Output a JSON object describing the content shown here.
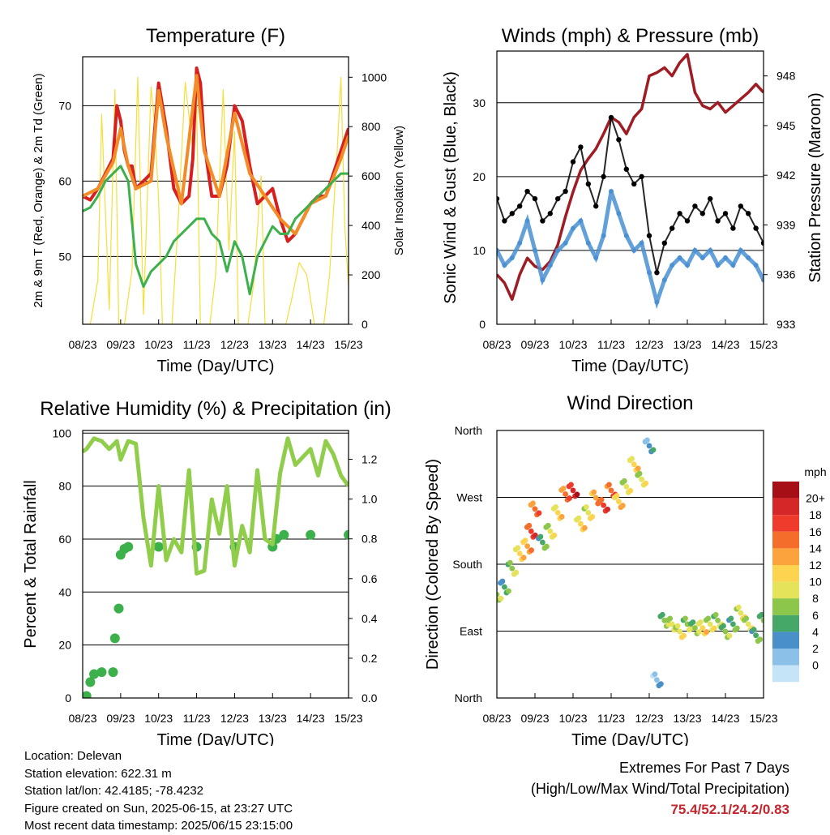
{
  "chart_data": [
    {
      "type": "line",
      "title": "Temperature (F)",
      "xlabel": "Time (Day/UTC)",
      "ylabel": "2m & 9m T (Red, Orange) & 2m Td (Green)",
      "y2label": "Solar Insolation (Yellow)",
      "x_ticks": [
        "08/23",
        "09/23",
        "10/23",
        "11/23",
        "12/23",
        "13/23",
        "14/23",
        "15/23"
      ],
      "y_ticks": [
        50,
        60,
        70
      ],
      "y2_ticks": [
        0,
        200,
        400,
        600,
        800,
        1000
      ],
      "ylim": [
        41,
        76.5
      ],
      "y2lim": [
        0,
        1083
      ],
      "grid": "horizontal",
      "series": [
        {
          "name": "2m T",
          "color": "#d62020",
          "x": [
            0,
            0.2,
            0.4,
            0.6,
            0.8,
            0.9,
            1.0,
            1.1,
            1.2,
            1.3,
            1.4,
            1.6,
            1.8,
            2.0,
            2.2,
            2.4,
            2.6,
            2.8,
            2.9,
            3.0,
            3.1,
            3.2,
            3.4,
            3.6,
            3.8,
            4.0,
            4.2,
            4.4,
            4.6,
            4.8,
            5.0,
            5.2,
            5.4,
            5.6,
            5.8,
            6.0,
            6.2,
            6.4,
            6.6,
            6.8,
            7.0
          ],
          "values": [
            58,
            57.5,
            59,
            61,
            63,
            70,
            68,
            64,
            62,
            62,
            59,
            60,
            61,
            73,
            67,
            59,
            57,
            58,
            63,
            75,
            73,
            65,
            58,
            58,
            62,
            70,
            68,
            62,
            57,
            58,
            59,
            55,
            52,
            53,
            55,
            57,
            58,
            58,
            61,
            64,
            67
          ]
        },
        {
          "name": "9m T",
          "color": "#f28c28",
          "x": [
            0,
            0.4,
            0.8,
            1.0,
            1.2,
            1.4,
            1.8,
            2.0,
            2.2,
            2.6,
            3.0,
            3.2,
            3.6,
            4.0,
            4.4,
            4.8,
            5.2,
            5.6,
            6.0,
            6.4,
            6.8,
            7.0
          ],
          "values": [
            58,
            59,
            62.5,
            67,
            62,
            59,
            60,
            72,
            66,
            57,
            74,
            64,
            58,
            69,
            61,
            58,
            55,
            53,
            57,
            58,
            63,
            66
          ]
        },
        {
          "name": "2m Td",
          "color": "#3cb04a",
          "x": [
            0,
            0.2,
            0.4,
            0.6,
            0.8,
            1.0,
            1.2,
            1.4,
            1.6,
            1.8,
            2.0,
            2.2,
            2.4,
            2.6,
            2.8,
            3.0,
            3.2,
            3.4,
            3.6,
            3.8,
            4.0,
            4.2,
            4.4,
            4.6,
            4.8,
            5.0,
            5.2,
            5.4,
            5.6,
            5.8,
            6.0,
            6.2,
            6.4,
            6.6,
            6.8,
            7.0
          ],
          "values": [
            56,
            56.5,
            58,
            60,
            61,
            62,
            60,
            49,
            46,
            48,
            49,
            50,
            52,
            53,
            54,
            55,
            55,
            53,
            52,
            48,
            52,
            50,
            45,
            50,
            52,
            54,
            53,
            53,
            55,
            56,
            57,
            58,
            59,
            60,
            61,
            61
          ]
        },
        {
          "name": "Solar Insolation",
          "color": "#f6de3b",
          "axis": "y2",
          "x": [
            0,
            0.2,
            0.4,
            0.5,
            0.7,
            0.85,
            0.95,
            1.1,
            1.3,
            1.45,
            1.6,
            1.8,
            1.9,
            2.0,
            2.1,
            2.35,
            2.5,
            2.7,
            2.9,
            3.0,
            3.1,
            3.35,
            3.5,
            3.7,
            3.85,
            4.0,
            4.1,
            4.35,
            4.5,
            4.7,
            4.8,
            4.9,
            5.1,
            5.35,
            5.5,
            5.7,
            5.9,
            6.1,
            6.35,
            6.5,
            6.7,
            6.8,
            6.9,
            7.0
          ],
          "values": [
            0,
            0,
            180,
            850,
            60,
            950,
            0,
            0,
            220,
            1000,
            40,
            960,
            800,
            500,
            0,
            0,
            380,
            980,
            700,
            900,
            0,
            0,
            200,
            950,
            300,
            780,
            0,
            0,
            160,
            600,
            0,
            0,
            0,
            0,
            100,
            250,
            200,
            0,
            0,
            200,
            700,
            1000,
            400,
            150
          ]
        }
      ]
    },
    {
      "type": "scatter",
      "title": "Winds (mph) & Pressure (mb)",
      "xlabel": "Time (Day/UTC)",
      "ylabel": "Sonic Wind & Gust (Blue, Black)",
      "y2label": "Station Pressure (Maroon)",
      "x_ticks": [
        "08/23",
        "09/23",
        "10/23",
        "11/23",
        "12/23",
        "13/23",
        "14/23",
        "15/23"
      ],
      "y_ticks": [
        0,
        10,
        20,
        30
      ],
      "y2_ticks": [
        933,
        936,
        939,
        942,
        945,
        948
      ],
      "ylim": [
        0,
        37
      ],
      "y2lim": [
        933,
        949.5
      ],
      "grid": "horizontal",
      "series": [
        {
          "name": "Gust",
          "color": "#000000",
          "x": [
            0,
            0.2,
            0.4,
            0.6,
            0.8,
            1.0,
            1.2,
            1.4,
            1.6,
            1.8,
            2.0,
            2.2,
            2.4,
            2.6,
            2.8,
            3.0,
            3.2,
            3.4,
            3.6,
            3.8,
            4.0,
            4.2,
            4.4,
            4.6,
            4.8,
            5.0,
            5.2,
            5.4,
            5.6,
            5.8,
            6.0,
            6.2,
            6.4,
            6.6,
            6.8,
            7.0
          ],
          "values": [
            17,
            14,
            15,
            16,
            18,
            17,
            14,
            15,
            17,
            18,
            22,
            24,
            19,
            16,
            20,
            28,
            25,
            21,
            19,
            20,
            12,
            7,
            11,
            13,
            15,
            14,
            16,
            15,
            17,
            14,
            15,
            13,
            16,
            15,
            13,
            11
          ]
        },
        {
          "name": "Wind",
          "color": "#4a90d2",
          "x": [
            0,
            0.2,
            0.4,
            0.6,
            0.8,
            1.0,
            1.2,
            1.4,
            1.6,
            1.8,
            2.0,
            2.2,
            2.4,
            2.6,
            2.8,
            3.0,
            3.2,
            3.4,
            3.6,
            3.8,
            4.0,
            4.2,
            4.4,
            4.6,
            4.8,
            5.0,
            5.2,
            5.4,
            5.6,
            5.8,
            6.0,
            6.2,
            6.4,
            6.6,
            6.8,
            7.0
          ],
          "values": [
            10,
            8,
            9,
            11,
            14,
            10,
            6,
            8,
            10,
            11,
            13,
            14,
            11,
            9,
            12,
            18,
            15,
            12,
            10,
            11,
            7,
            3,
            6,
            8,
            9,
            8,
            10,
            9,
            10,
            8,
            9,
            8,
            10,
            9,
            8,
            6
          ]
        },
        {
          "name": "Station Pressure",
          "color": "#a01c24",
          "axis": "y2",
          "x": [
            0,
            0.2,
            0.4,
            0.6,
            0.8,
            1.0,
            1.2,
            1.4,
            1.6,
            1.8,
            2.0,
            2.2,
            2.4,
            2.6,
            2.8,
            3.0,
            3.2,
            3.4,
            3.6,
            3.8,
            4.0,
            4.2,
            4.4,
            4.6,
            4.8,
            5.0,
            5.2,
            5.4,
            5.6,
            5.8,
            6.0,
            6.2,
            6.4,
            6.6,
            6.8,
            7.0
          ],
          "values": [
            936,
            935.5,
            934.5,
            936,
            937,
            936.5,
            936.3,
            936.8,
            937.8,
            939.5,
            941,
            942.3,
            943,
            943.6,
            944.5,
            945.5,
            945.2,
            944.5,
            945.5,
            946,
            948,
            948.2,
            948.5,
            948,
            948.8,
            949.3,
            947,
            946.2,
            946,
            946.4,
            945.8,
            946.2,
            946.6,
            947,
            947.5,
            947
          ]
        }
      ]
    },
    {
      "type": "line",
      "title": "Relative Humidity (%) & Precipitation (in)",
      "xlabel": "Time (Day/UTC)",
      "ylabel": "Percent & Total Rainfall",
      "x_ticks": [
        "08/23",
        "09/23",
        "10/23",
        "11/23",
        "12/23",
        "13/23",
        "14/23",
        "15/23"
      ],
      "y_ticks": [
        0,
        20,
        40,
        60,
        80,
        100
      ],
      "y2_ticks": [
        0.0,
        0.2,
        0.4,
        0.6,
        0.8,
        1.0,
        1.2
      ],
      "ylim": [
        0,
        101
      ],
      "y2lim": [
        0,
        1.345
      ],
      "grid": "horizontal",
      "series": [
        {
          "name": "Relative Humidity",
          "color": "#8fcd4a",
          "x": [
            0,
            0.1,
            0.3,
            0.5,
            0.7,
            0.9,
            1.0,
            1.2,
            1.4,
            1.6,
            1.8,
            2.0,
            2.2,
            2.4,
            2.6,
            2.8,
            3.0,
            3.2,
            3.4,
            3.6,
            3.8,
            4.0,
            4.2,
            4.4,
            4.6,
            4.8,
            5.0,
            5.2,
            5.4,
            5.6,
            5.8,
            6.0,
            6.2,
            6.4,
            6.6,
            6.8,
            7.0
          ],
          "values": [
            93,
            94,
            98,
            97,
            94,
            97,
            90,
            97,
            96,
            68,
            50,
            80,
            52,
            60,
            55,
            86,
            47,
            48,
            75,
            62,
            80,
            50,
            65,
            55,
            86,
            60,
            58,
            85,
            98,
            88,
            91,
            94,
            84,
            97,
            92,
            84,
            80
          ]
        },
        {
          "name": "Total Precipitation",
          "color": "#3cb04a",
          "axis": "y2",
          "x": [
            0,
            0.1,
            0.2,
            0.3,
            0.5,
            0.8,
            0.85,
            0.95,
            1.0,
            1.1,
            1.2,
            2.0,
            3.0,
            4.0,
            5.0,
            5.1,
            5.3,
            6.0,
            7.0
          ],
          "values": [
            0,
            0.01,
            0.08,
            0.12,
            0.13,
            0.13,
            0.3,
            0.45,
            0.72,
            0.75,
            0.76,
            0.76,
            0.76,
            0.76,
            0.76,
            0.8,
            0.82,
            0.82,
            0.82
          ]
        }
      ]
    },
    {
      "type": "scatter",
      "title": "Wind Direction",
      "xlabel": "Time (Day/UTC)",
      "ylabel": "Direction (Colored By Speed)",
      "x_ticks": [
        "08/23",
        "09/23",
        "10/23",
        "11/23",
        "12/23",
        "13/23",
        "14/23",
        "15/23"
      ],
      "y_ticks": [
        "North",
        "East",
        "South",
        "West",
        "North"
      ],
      "ylim": [
        0,
        360
      ],
      "grid": "horizontal",
      "colorbar": {
        "title": "mph",
        "labels": [
          "20+",
          "18",
          "16",
          "14",
          "12",
          "10",
          "8",
          "6",
          "4",
          "2",
          "0"
        ],
        "colors": [
          "#a50f15",
          "#d62728",
          "#ef3b2c",
          "#f46d2a",
          "#fca33d",
          "#fdd44f",
          "#e4e35a",
          "#8cc64a",
          "#46a868",
          "#4a90c8",
          "#8bc0e8",
          "#c6e4f7"
        ]
      },
      "x": [
        0,
        0.2,
        0.4,
        0.6,
        0.8,
        0.9,
        1.0,
        1.2,
        1.4,
        1.6,
        1.8,
        2.0,
        2.2,
        2.4,
        2.6,
        2.8,
        3.0,
        3.2,
        3.4,
        3.6,
        3.8,
        4.0,
        4.2,
        4.4,
        4.6,
        4.8,
        5.0,
        5.2,
        5.4,
        5.6,
        5.8,
        6.0,
        6.2,
        6.4,
        6.6,
        6.8,
        7.0
      ],
      "values": [
        135,
        145,
        170,
        190,
        200,
        220,
        250,
        205,
        220,
        245,
        270,
        275,
        230,
        245,
        265,
        255,
        275,
        260,
        280,
        310,
        290,
        335,
        20,
        100,
        95,
        85,
        95,
        90,
        90,
        95,
        100,
        85,
        95,
        110,
        95,
        80,
        100
      ],
      "speeds": [
        8,
        6,
        9,
        12,
        14,
        18,
        16,
        7,
        10,
        12,
        16,
        20,
        12,
        11,
        15,
        18,
        17,
        13,
        10,
        12,
        10,
        4,
        3,
        8,
        10,
        11,
        9,
        8,
        12,
        10,
        9,
        8,
        7,
        11,
        10,
        7,
        8
      ]
    }
  ],
  "info": {
    "location": "Location: Delevan",
    "elevation": "Station elevation: 622.31 m",
    "latlon": "Station lat/lon: 42.4185; -78.4232",
    "created": "Figure created on Sun, 2025-06-15, at 23:27 UTC",
    "recent": "Most recent data timestamp: 2025/06/15 23:15:00"
  },
  "extremes": {
    "title": "Extremes For Past 7 Days",
    "subtitle": "(High/Low/Max Wind/Total Precipitation)",
    "values": "75.4/52.1/24.2/0.83"
  }
}
